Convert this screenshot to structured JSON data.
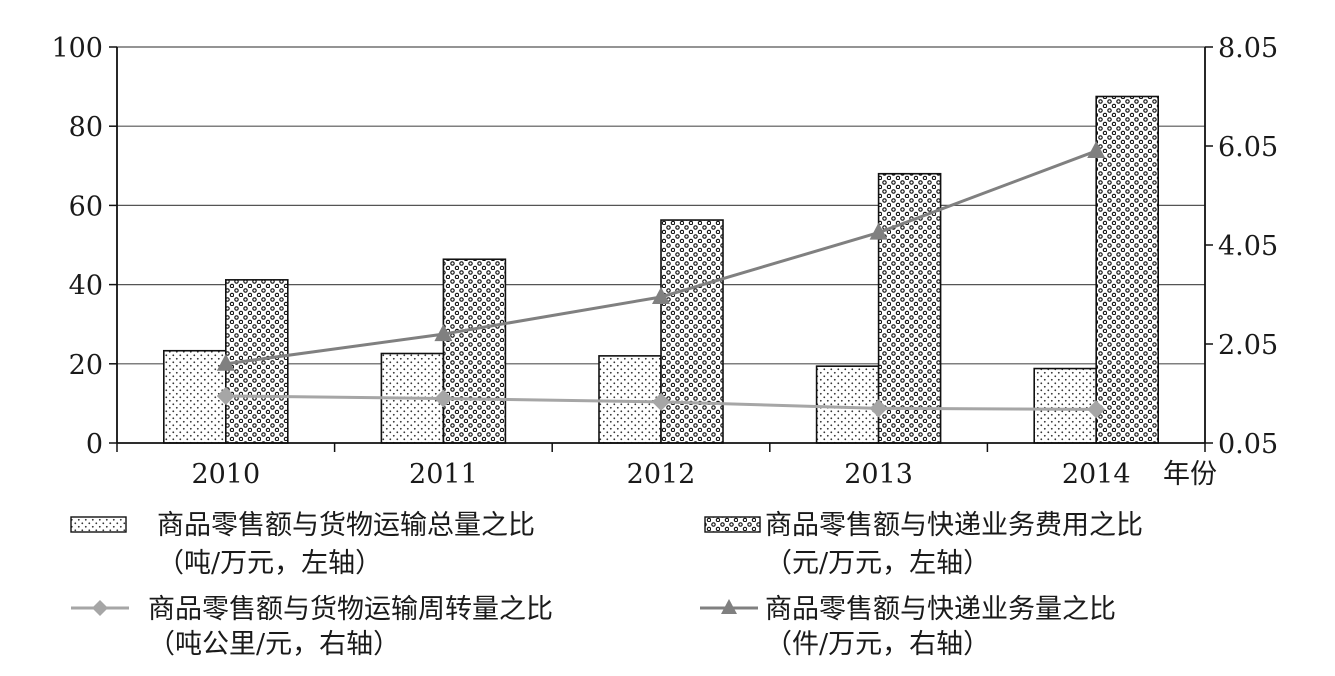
{
  "chart_data": {
    "type": "bar",
    "categories": [
      "2010",
      "2011",
      "2012",
      "2013",
      "2014"
    ],
    "xlabel": "年份",
    "left_axis": {
      "ylim": [
        0,
        100
      ],
      "ticks": [
        "0",
        "20",
        "40",
        "60",
        "80",
        "100"
      ]
    },
    "right_axis": {
      "ylim": [
        0.05,
        8.05
      ],
      "ticks": [
        "0.05",
        "2.05",
        "4.05",
        "6.05",
        "8.05"
      ]
    },
    "grid": true,
    "series": [
      {
        "name": "商品零售额与货物运输总量之比",
        "unit": "（吨/万元，左轴）",
        "kind": "bar",
        "axis": "left",
        "pattern": "fine-dots",
        "values": [
          23.3,
          22.6,
          22.0,
          19.4,
          18.8
        ]
      },
      {
        "name": "商品零售额与快递业务费用之比",
        "unit": "（元/万元，左轴）",
        "kind": "bar",
        "axis": "left",
        "pattern": "circles",
        "values": [
          41.2,
          46.4,
          56.3,
          68.0,
          87.5
        ]
      },
      {
        "name": "商品零售额与货物运输周转量之比",
        "unit": "（吨公里/元，右轴）",
        "kind": "line",
        "axis": "right",
        "marker": "diamond",
        "color": "#a6a6a6",
        "values": [
          1.0,
          0.95,
          0.88,
          0.75,
          0.73
        ]
      },
      {
        "name": "商品零售额与快递业务量之比",
        "unit": "（件/万元，右轴）",
        "kind": "line",
        "axis": "right",
        "marker": "triangle",
        "color": "#808080",
        "values": [
          1.65,
          2.25,
          3.0,
          4.3,
          5.95
        ]
      }
    ],
    "legend_position": "bottom"
  }
}
